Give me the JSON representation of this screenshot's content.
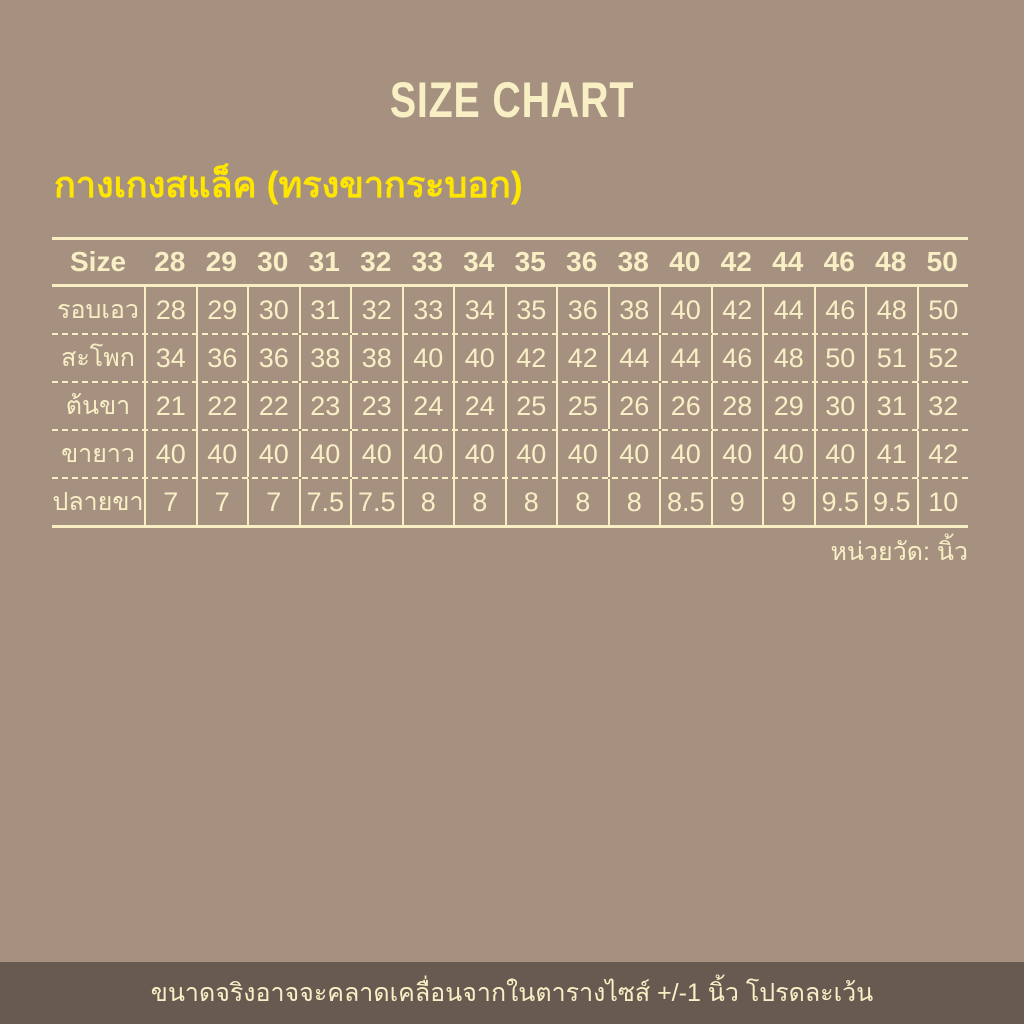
{
  "title": "SIZE CHART",
  "subtitle": "กางเกงสแล็ค (ทรงขากระบอก)",
  "unit_note": "หน่วยวัด: นิ้ว",
  "footer_note": "ขนาดจริงอาจจะคลาดเคลื่อนจากในตารางไซส์ +/-1 นิ้ว โปรดละเว้น",
  "colors": {
    "background": "#a69181",
    "table_lines_and_text": "#f8efc5",
    "subtitle_yellow": "#ffe600",
    "footer_background": "#665a51"
  },
  "chart_data": {
    "type": "table",
    "title": "SIZE CHART",
    "subtitle": "กางเกงสแล็ค (ทรงขากระบอก)",
    "unit": "นิ้ว",
    "columns": [
      "Size",
      "28",
      "29",
      "30",
      "31",
      "32",
      "33",
      "34",
      "35",
      "36",
      "38",
      "40",
      "42",
      "44",
      "46",
      "48",
      "50"
    ],
    "rows": [
      {
        "label": "รอบเอว",
        "values": [
          "28",
          "29",
          "30",
          "31",
          "32",
          "33",
          "34",
          "35",
          "36",
          "38",
          "40",
          "42",
          "44",
          "46",
          "48",
          "50"
        ]
      },
      {
        "label": "สะโพก",
        "values": [
          "34",
          "36",
          "36",
          "38",
          "38",
          "40",
          "40",
          "42",
          "42",
          "44",
          "44",
          "46",
          "48",
          "50",
          "51",
          "52"
        ]
      },
      {
        "label": "ต้นขา",
        "values": [
          "21",
          "22",
          "22",
          "23",
          "23",
          "24",
          "24",
          "25",
          "25",
          "26",
          "26",
          "28",
          "29",
          "30",
          "31",
          "32"
        ]
      },
      {
        "label": "ขายาว",
        "values": [
          "40",
          "40",
          "40",
          "40",
          "40",
          "40",
          "40",
          "40",
          "40",
          "40",
          "40",
          "40",
          "40",
          "40",
          "41",
          "42"
        ]
      },
      {
        "label": "ปลายขา",
        "values": [
          "7",
          "7",
          "7",
          "7.5",
          "7.5",
          "8",
          "8",
          "8",
          "8",
          "8",
          "8.5",
          "9",
          "9",
          "9.5",
          "9.5",
          "10"
        ]
      }
    ],
    "layout": {
      "grid": "solid vertical separators, dashed horizontal row separators",
      "legend": "none"
    }
  }
}
